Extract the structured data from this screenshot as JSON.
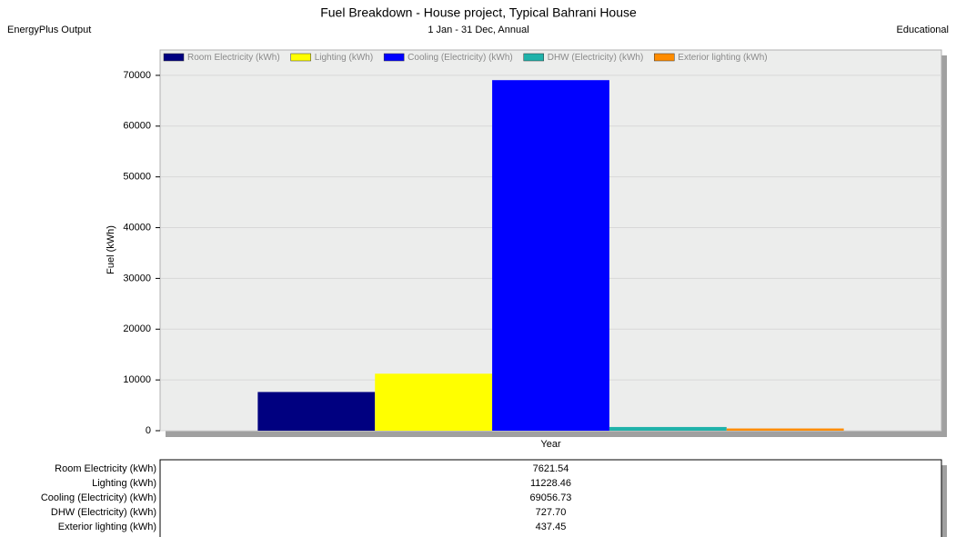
{
  "chart_data": {
    "type": "bar",
    "title": "Fuel Breakdown - House project, Typical Bahrani House",
    "subtitle": "1 Jan - 31 Dec, Annual",
    "header_left": "EnergyPlus Output",
    "header_right": "Educational",
    "y_label": "Fuel (kWh)",
    "categories": [
      "Year"
    ],
    "series": [
      {
        "name": "Room Electricity (kWh)",
        "color": "#000080",
        "values": [
          7621.54
        ],
        "value_labels": [
          "7621.54"
        ]
      },
      {
        "name": "Lighting (kWh)",
        "color": "#ffff00",
        "values": [
          11228.46
        ],
        "value_labels": [
          "11228.46"
        ]
      },
      {
        "name": "Cooling (Electricity) (kWh)",
        "color": "#0000ff",
        "values": [
          69056.73
        ],
        "value_labels": [
          "69056.73"
        ]
      },
      {
        "name": "DHW (Electricity) (kWh)",
        "color": "#20b2aa",
        "values": [
          727.7
        ],
        "value_labels": [
          "727.70"
        ]
      },
      {
        "name": "Exterior lighting (kWh)",
        "color": "#ff8c00",
        "values": [
          437.45
        ],
        "value_labels": [
          "437.45"
        ]
      }
    ],
    "ylim": [
      0,
      75000
    ],
    "yticks": [
      0,
      10000,
      20000,
      30000,
      40000,
      50000,
      60000,
      70000
    ],
    "grid": true,
    "legend": "top"
  }
}
